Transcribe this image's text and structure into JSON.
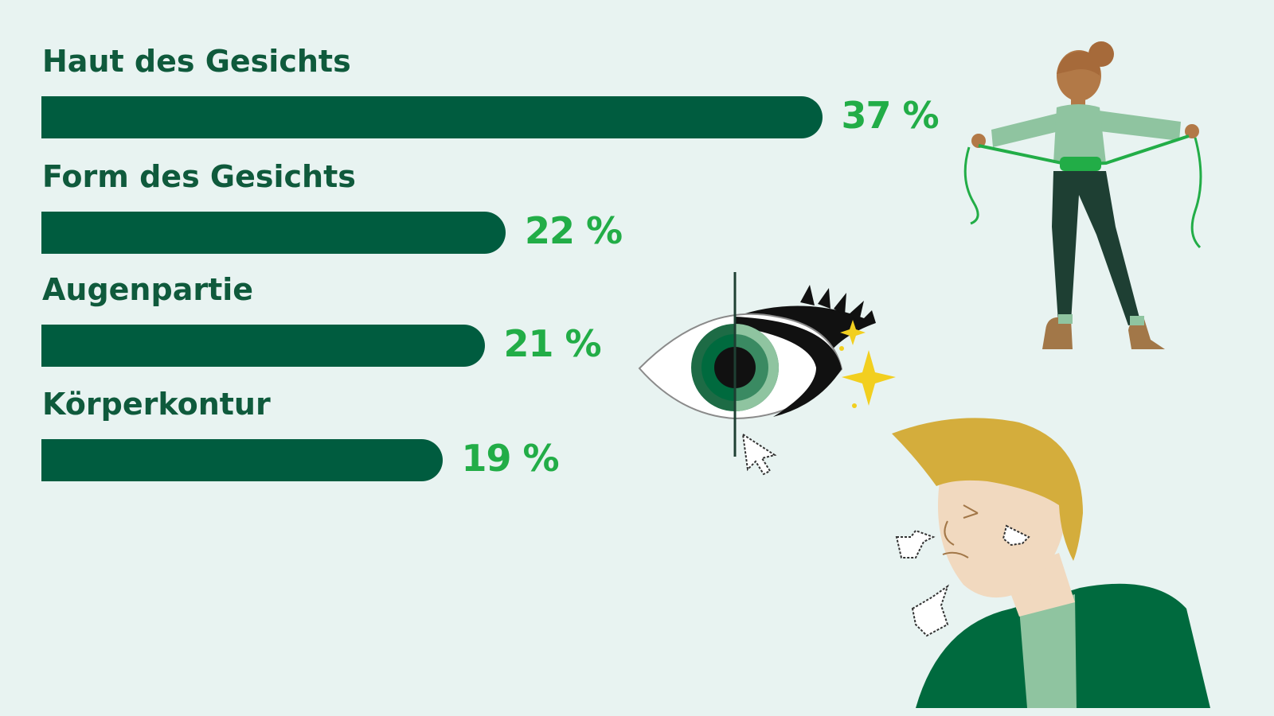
{
  "chart_data": {
    "type": "bar",
    "orientation": "horizontal",
    "categories": [
      "Haut des Gesichts",
      "Form des Gesichts",
      "Augenpartie",
      "Körperkontur"
    ],
    "values": [
      37,
      22,
      21,
      19
    ],
    "value_labels": [
      "37 %",
      "22 %",
      "21 %",
      "19 %"
    ],
    "unit": "%",
    "grid": false,
    "colors": {
      "bar": "#005c3f",
      "value": "#22ad47",
      "label": "#0f5a3c",
      "background": "#e8f3f1"
    }
  },
  "illustrations": {
    "woman": "woman-measuring-waist-illustration",
    "eye": "half-made-up-eye-illustration",
    "cursor": "mouse-pointer-icon",
    "man": "man-pointing-at-face-illustration"
  }
}
